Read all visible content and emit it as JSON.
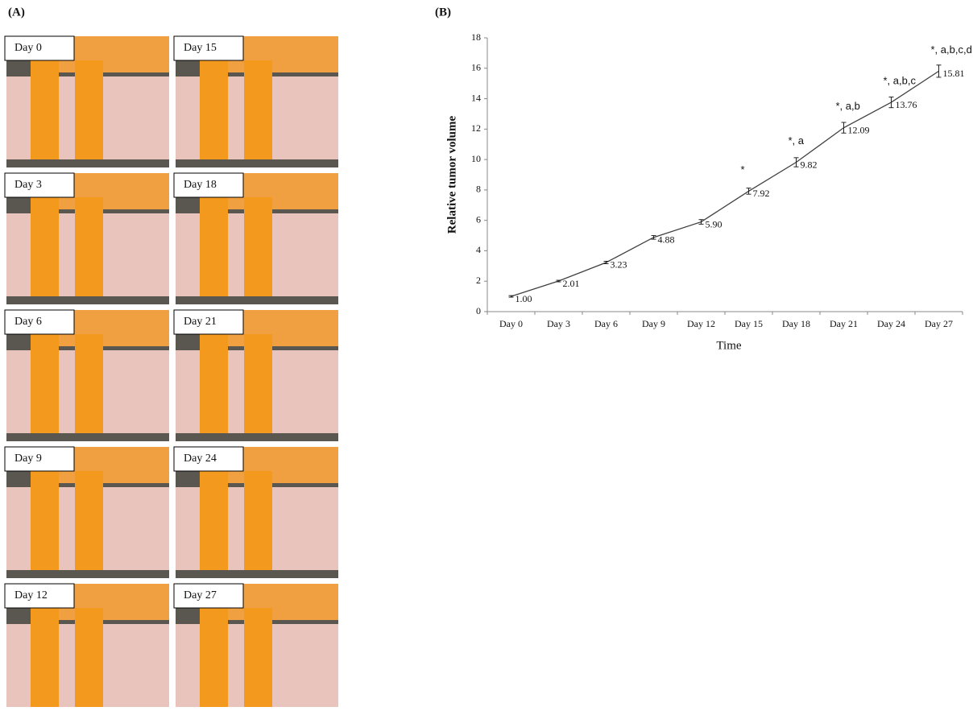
{
  "panel_a": {
    "label": "(A)",
    "photos": [
      "Day 0",
      "Day 15",
      "Day 3",
      "Day 18",
      "Day 6",
      "Day 21",
      "Day 9",
      "Day 24",
      "Day 12",
      "Day 27"
    ]
  },
  "chart_data": {
    "type": "line",
    "panel_label": "(B)",
    "x_label": "Time",
    "y_label": "Relative tumor volume",
    "categories": [
      "Day 0",
      "Day 3",
      "Day 6",
      "Day 9",
      "Day 12",
      "Day 15",
      "Day 18",
      "Day 21",
      "Day 24",
      "Day 27"
    ],
    "values": [
      1.0,
      2.01,
      3.23,
      4.88,
      5.9,
      7.92,
      9.82,
      12.09,
      13.76,
      15.81
    ],
    "value_labels": [
      "1.00",
      "2.01",
      "3.23",
      "4.88",
      "5.90",
      "7.92",
      "9.82",
      "12.09",
      "13.76",
      "15.81"
    ],
    "errors": [
      0.05,
      0.05,
      0.08,
      0.12,
      0.15,
      0.2,
      0.3,
      0.35,
      0.35,
      0.4
    ],
    "significance": [
      null,
      null,
      null,
      null,
      null,
      "*",
      "*, a",
      "*, a,b",
      "*, a,b,c",
      "*, a,b,c,d"
    ],
    "color": "#404040",
    "ylim": [
      0,
      18
    ],
    "yticks": [
      0,
      2,
      4,
      6,
      8,
      10,
      12,
      14,
      16,
      18
    ],
    "grid": false
  }
}
